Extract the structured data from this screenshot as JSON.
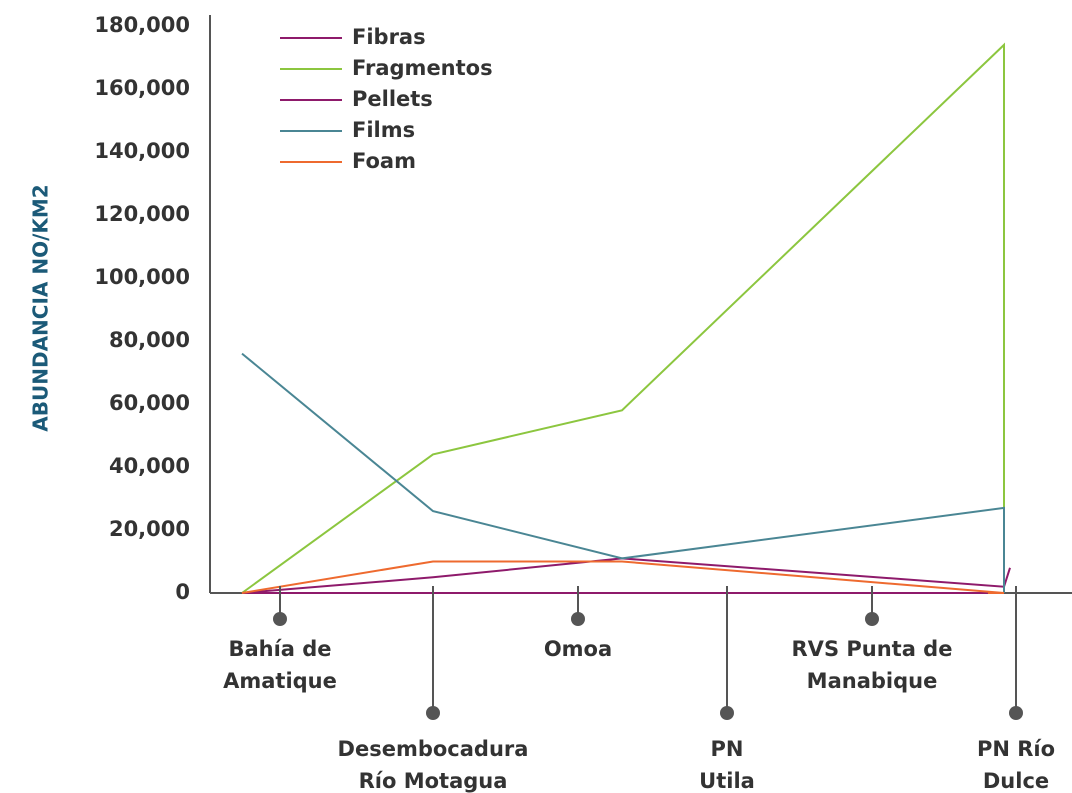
{
  "chart_data": {
    "type": "line",
    "title": "",
    "xlabel": "",
    "ylabel": "ABUNDANCIA NO/KM2",
    "ylim": [
      0,
      180000
    ],
    "yticks": [
      "0",
      "20,000",
      "40,000",
      "60,000",
      "80,000",
      "100,000",
      "120,000",
      "140,000",
      "160,000",
      "180,000"
    ],
    "legend_position": "top-left",
    "grid": false,
    "categories": [
      [
        "Bahía de",
        "Amatique"
      ],
      [
        "Desembocadura",
        "Río Motagua"
      ],
      [
        "Omoa"
      ],
      [
        "PN",
        "Utila"
      ],
      [
        "RVS Punta de",
        "Manabique"
      ],
      [
        "PN Río",
        "Dulce"
      ]
    ],
    "series": [
      {
        "name": "Fibras",
        "color": "#8e1a6b",
        "values": [
          0,
          0,
          0,
          0,
          0,
          0
        ]
      },
      {
        "name": "Fragmentos",
        "color": "#8cc63f",
        "values": [
          0,
          44000,
          58000,
          null,
          174000,
          0
        ]
      },
      {
        "name": "Pellets",
        "color": "#8e1a6b",
        "values": [
          0,
          5000,
          11000,
          null,
          2000,
          8000
        ]
      },
      {
        "name": "Films",
        "color": "#4a8694",
        "values": [
          76000,
          26000,
          11000,
          null,
          27000,
          0
        ]
      },
      {
        "name": "Foam",
        "color": "#ee6a2f",
        "values": [
          0,
          10000,
          10000,
          null,
          0,
          0
        ]
      }
    ]
  }
}
